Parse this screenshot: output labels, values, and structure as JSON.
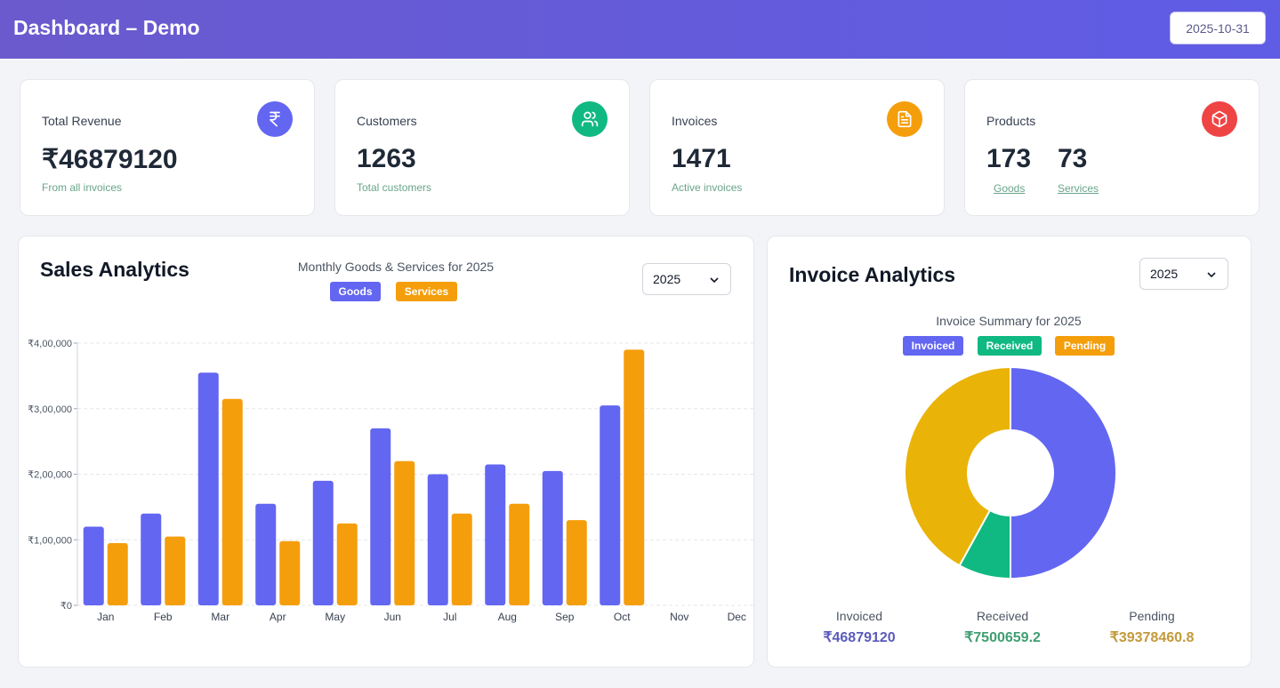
{
  "header": {
    "title": "Dashboard – Demo",
    "date": "2025-10-31"
  },
  "stats": {
    "revenue": {
      "label": "Total Revenue",
      "value": "₹46879120",
      "sub": "From all invoices"
    },
    "customers": {
      "label": "Customers",
      "value": "1263",
      "sub": "Total customers"
    },
    "invoices": {
      "label": "Invoices",
      "value": "1471",
      "sub": "Active invoices"
    },
    "products": {
      "label": "Products",
      "goods_value": "173",
      "goods_label": "Goods",
      "services_value": "73",
      "services_label": "Services"
    }
  },
  "colors": {
    "goods": "#6366f1",
    "services": "#f59e0b",
    "invoiced": "#6366f1",
    "received": "#10b981",
    "pending": "#eab308"
  },
  "sales": {
    "title": "Sales Analytics",
    "chart_title": "Monthly Goods & Services for 2025",
    "year": "2025",
    "legend": {
      "goods": "Goods",
      "services": "Services"
    }
  },
  "invoice": {
    "title": "Invoice Analytics",
    "year": "2025",
    "chart_title": "Invoice Summary for 2025",
    "legend": {
      "invoiced": "Invoiced",
      "received": "Received",
      "pending": "Pending"
    },
    "summary": {
      "invoiced_label": "Invoiced",
      "invoiced_value": "₹46879120",
      "received_label": "Received",
      "received_value": "₹7500659.2",
      "pending_label": "Pending",
      "pending_value": "₹39378460.8"
    }
  },
  "chart_data": [
    {
      "type": "bar",
      "title": "Monthly Goods & Services for 2025",
      "categories": [
        "Jan",
        "Feb",
        "Mar",
        "Apr",
        "May",
        "Jun",
        "Jul",
        "Aug",
        "Sep",
        "Oct",
        "Nov",
        "Dec"
      ],
      "series": [
        {
          "name": "Goods",
          "values": [
            120000,
            140000,
            355000,
            155000,
            190000,
            270000,
            200000,
            215000,
            205000,
            305000,
            0,
            0
          ]
        },
        {
          "name": "Services",
          "values": [
            95000,
            105000,
            315000,
            98000,
            125000,
            220000,
            140000,
            155000,
            130000,
            390000,
            0,
            0
          ]
        }
      ],
      "ylim": [
        0,
        400000
      ],
      "yticks": [
        0,
        100000,
        200000,
        300000,
        400000
      ],
      "ytick_labels": [
        "₹0",
        "₹1,00,000",
        "₹2,00,000",
        "₹3,00,000",
        "₹4,00,000"
      ],
      "grid": true
    },
    {
      "type": "pie",
      "title": "Invoice Summary for 2025",
      "labels": [
        "Invoiced",
        "Received",
        "Pending"
      ],
      "values": [
        46879120,
        7500659.2,
        39378460.8
      ]
    }
  ]
}
